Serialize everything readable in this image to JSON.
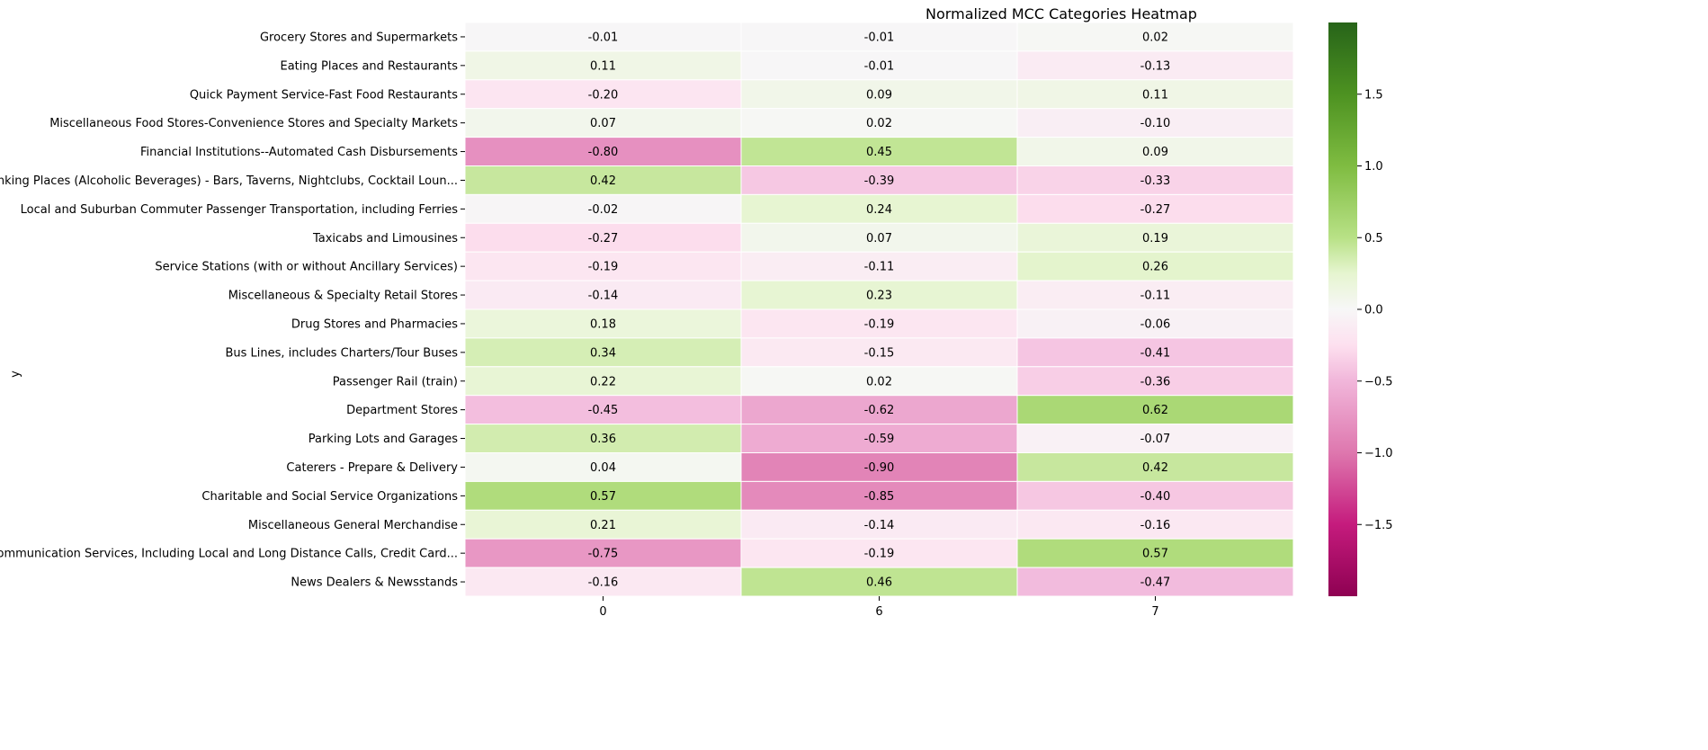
{
  "chart_data": {
    "type": "heatmap",
    "title": "Normalized MCC Categories Heatmap",
    "xlabel": "",
    "ylabel": "y",
    "x_categories": [
      "0",
      "6",
      "7"
    ],
    "y_categories": [
      "Grocery Stores and Supermarkets",
      "Eating Places and Restaurants",
      "Quick Payment Service-Fast Food Restaurants",
      "Miscellaneous Food Stores-Convenience Stores and Specialty Markets",
      "Financial Institutions--Automated Cash Disbursements ",
      "Drinking Places (Alcoholic Beverages) - Bars, Taverns, Nightclubs, Cocktail Loun...",
      "Local and Suburban Commuter Passenger Transportation, including Ferries",
      "Taxicabs and Limousines",
      "Service Stations (with or without Ancillary Services)",
      "Miscellaneous & Specialty Retail Stores",
      "Drug Stores and Pharmacies",
      "Bus Lines, includes Charters/Tour Buses",
      "Passenger Rail (train)",
      "Department Stores",
      "Parking Lots and Garages",
      "Caterers - Prepare & Delivery",
      "Charitable and Social Service Organizations",
      "Miscellaneous General Merchandise",
      "Telecommunication Services, Including Local and Long Distance Calls, Credit Card...",
      "News Dealers & Newsstands"
    ],
    "values": [
      [
        -0.01,
        -0.01,
        0.02
      ],
      [
        0.11,
        -0.01,
        -0.13
      ],
      [
        -0.2,
        0.09,
        0.11
      ],
      [
        0.07,
        0.02,
        -0.1
      ],
      [
        -0.8,
        0.45,
        0.09
      ],
      [
        0.42,
        -0.39,
        -0.33
      ],
      [
        -0.02,
        0.24,
        -0.27
      ],
      [
        -0.27,
        0.07,
        0.19
      ],
      [
        -0.19,
        -0.11,
        0.26
      ],
      [
        -0.14,
        0.23,
        -0.11
      ],
      [
        0.18,
        -0.19,
        -0.06
      ],
      [
        0.34,
        -0.15,
        -0.41
      ],
      [
        0.22,
        0.02,
        -0.36
      ],
      [
        -0.45,
        -0.62,
        0.62
      ],
      [
        0.36,
        -0.59,
        -0.07
      ],
      [
        0.04,
        -0.9,
        0.42
      ],
      [
        0.57,
        -0.85,
        -0.4
      ],
      [
        0.21,
        -0.14,
        -0.16
      ],
      [
        -0.75,
        -0.19,
        0.57
      ],
      [
        -0.16,
        0.46,
        -0.47
      ]
    ],
    "value_labels": [
      [
        "-0.01",
        "-0.01",
        "0.02"
      ],
      [
        "0.11",
        "-0.01",
        "-0.13"
      ],
      [
        "-0.20",
        "0.09",
        "0.11"
      ],
      [
        "0.07",
        "0.02",
        "-0.10"
      ],
      [
        "-0.80",
        "0.45",
        "0.09"
      ],
      [
        "0.42",
        "-0.39",
        "-0.33"
      ],
      [
        "-0.02",
        "0.24",
        "-0.27"
      ],
      [
        "-0.27",
        "0.07",
        "0.19"
      ],
      [
        "-0.19",
        "-0.11",
        "0.26"
      ],
      [
        "-0.14",
        "0.23",
        "-0.11"
      ],
      [
        "0.18",
        "-0.19",
        "-0.06"
      ],
      [
        "0.34",
        "-0.15",
        "-0.41"
      ],
      [
        "0.22",
        "0.02",
        "-0.36"
      ],
      [
        "-0.45",
        "-0.62",
        "0.62"
      ],
      [
        "0.36",
        "-0.59",
        "-0.07"
      ],
      [
        "0.04",
        "-0.90",
        "0.42"
      ],
      [
        "0.57",
        "-0.85",
        "-0.40"
      ],
      [
        "0.21",
        "-0.14",
        "-0.16"
      ],
      [
        "-0.75",
        "-0.19",
        "0.57"
      ],
      [
        "-0.16",
        "0.46",
        "-0.47"
      ]
    ],
    "colormap": "PiYG",
    "vmin": -2.0,
    "vmax": 2.0,
    "colorbar_ticks": [
      1.5,
      1.0,
      0.5,
      0.0,
      -0.5,
      -1.0,
      -1.5
    ],
    "colorbar_tick_labels": [
      "1.5",
      "1.0",
      "0.5",
      "0.0",
      "−0.5",
      "−1.0",
      "−1.5"
    ],
    "colormap_stops": [
      {
        "v": -2.0,
        "color": "#8e0152"
      },
      {
        "v": -1.5,
        "color": "#c51b7d"
      },
      {
        "v": -1.0,
        "color": "#de77ae"
      },
      {
        "v": -0.5,
        "color": "#f1b6da"
      },
      {
        "v": -0.25,
        "color": "#fde0ef"
      },
      {
        "v": 0.0,
        "color": "#f7f7f7"
      },
      {
        "v": 0.25,
        "color": "#e6f5d0"
      },
      {
        "v": 0.5,
        "color": "#b8e186"
      },
      {
        "v": 1.0,
        "color": "#7fbc41"
      },
      {
        "v": 1.5,
        "color": "#4d9221"
      },
      {
        "v": 2.0,
        "color": "#276419"
      }
    ],
    "grid": false,
    "legend": "colorbar-right"
  }
}
